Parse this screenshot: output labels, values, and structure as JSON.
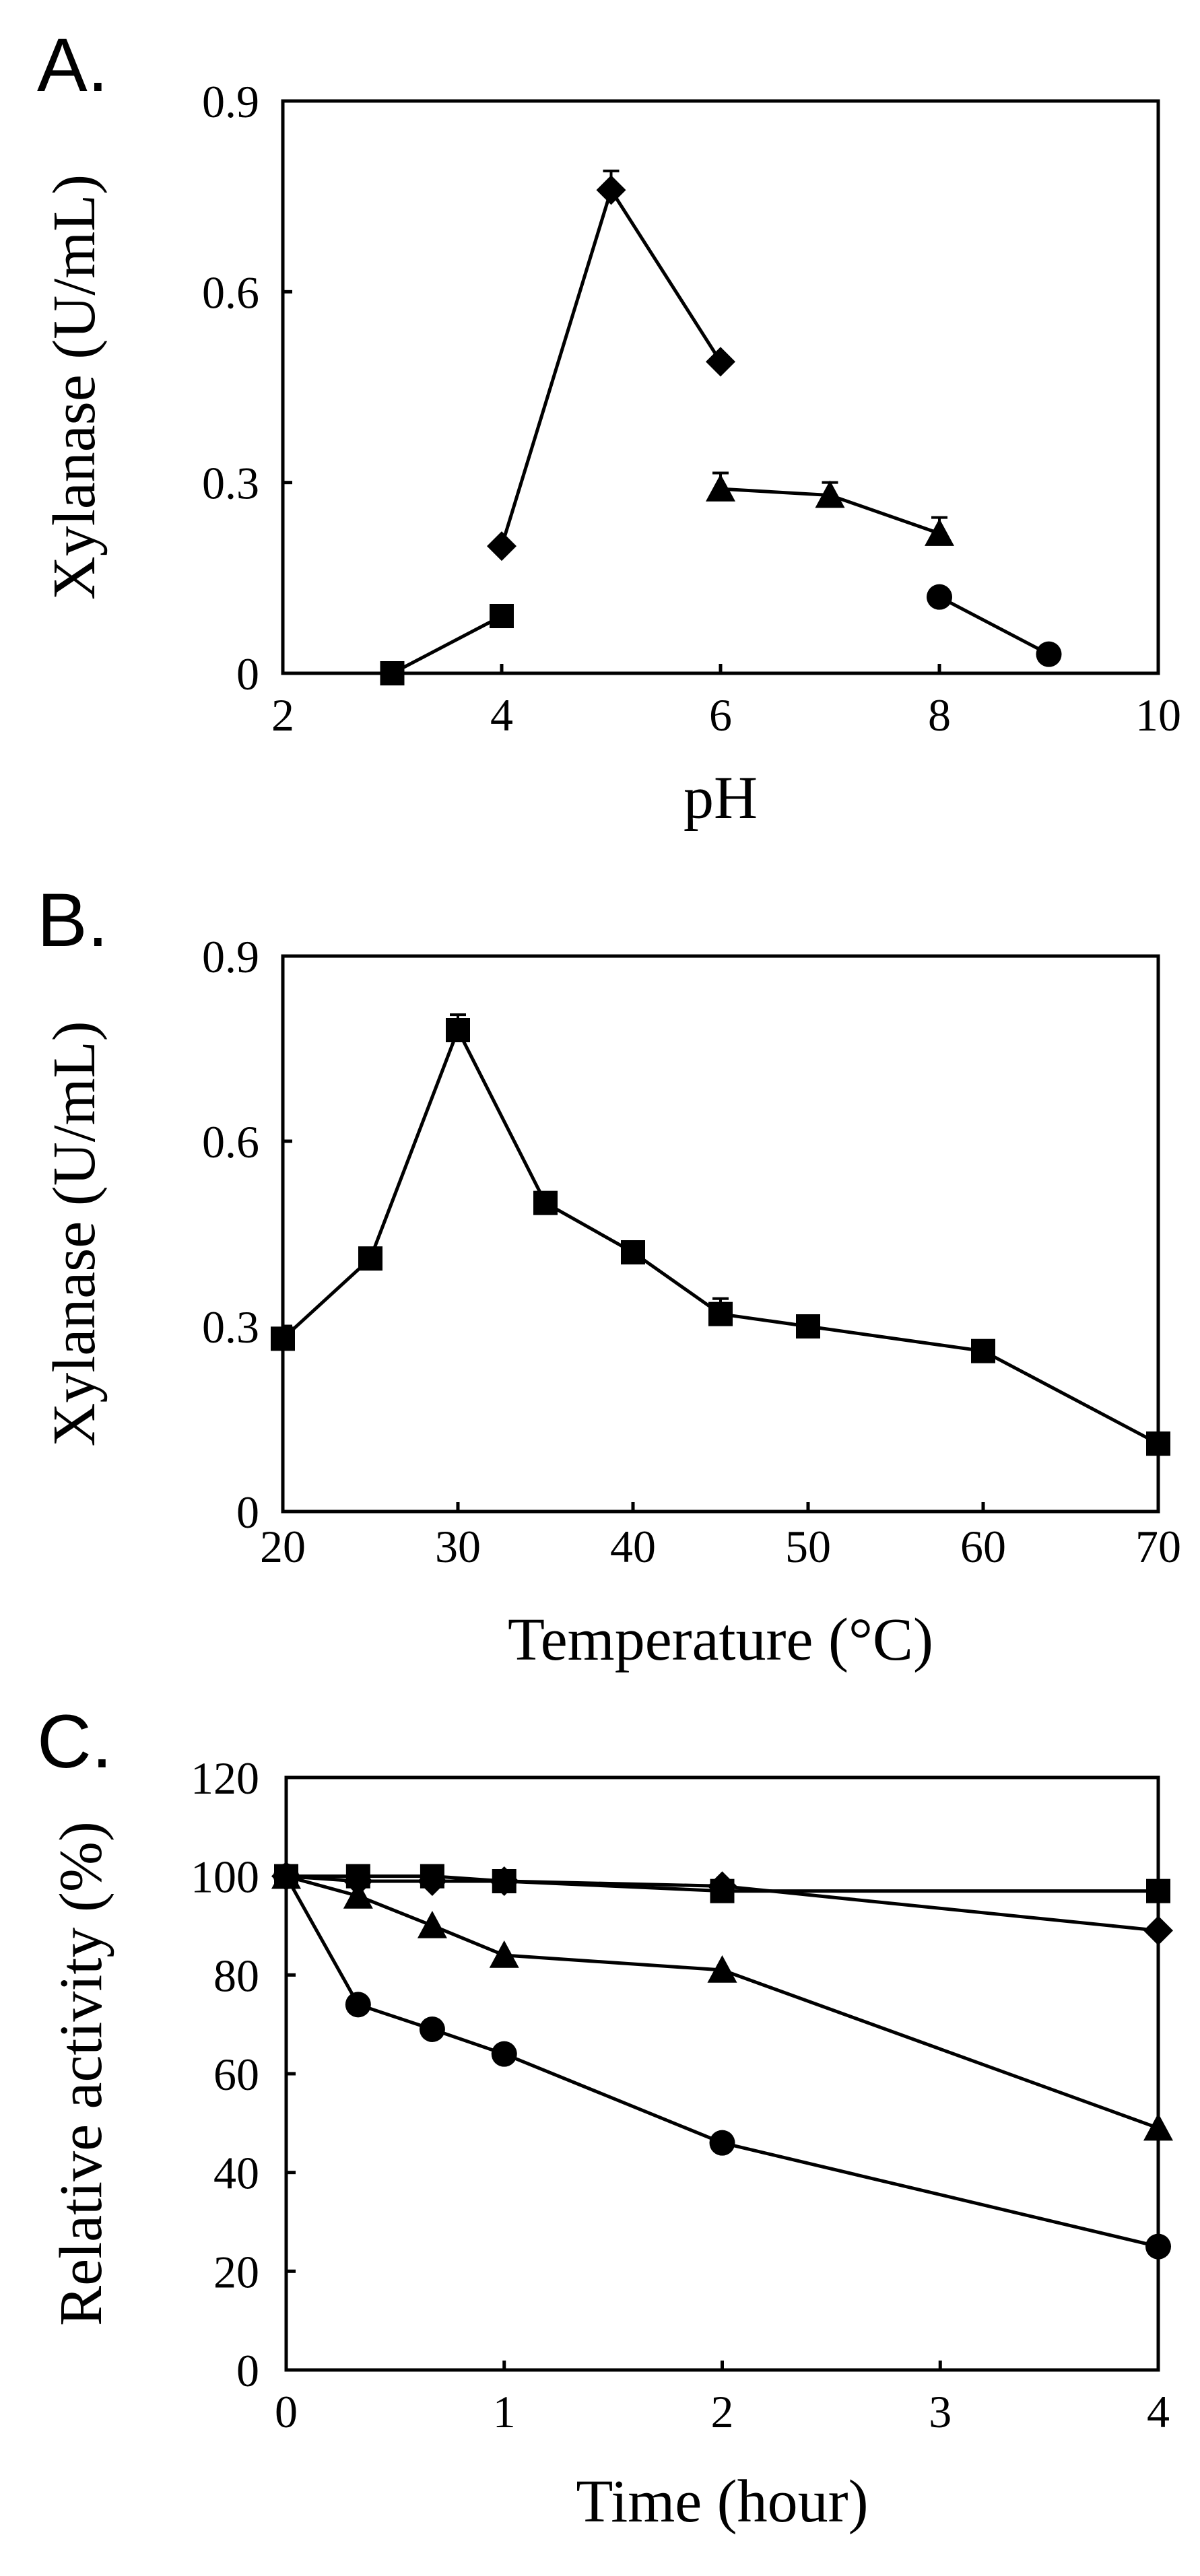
{
  "chart_data": [
    {
      "panel": "A.",
      "type": "line",
      "xlabel": "pH",
      "ylabel": "Xylanase (U/mL)",
      "xlim": [
        2,
        10
      ],
      "ylim": [
        0,
        0.9
      ],
      "xticks": [
        "2",
        "4",
        "6",
        "8",
        "10"
      ],
      "yticks": [
        "0",
        "0.3",
        "0.6",
        "0.9"
      ],
      "series": [
        {
          "marker": "square",
          "x": [
            3,
            4
          ],
          "y": [
            0.0,
            0.09
          ],
          "err": [
            0,
            0
          ]
        },
        {
          "marker": "diamond",
          "x": [
            4,
            5,
            6
          ],
          "y": [
            0.2,
            0.76,
            0.49
          ],
          "err": [
            0,
            0.03,
            0
          ]
        },
        {
          "marker": "triangle",
          "x": [
            6,
            7,
            8
          ],
          "y": [
            0.29,
            0.28,
            0.22
          ],
          "err": [
            0.025,
            0.02,
            0.025
          ]
        },
        {
          "marker": "circle",
          "x": [
            8,
            9
          ],
          "y": [
            0.12,
            0.03
          ],
          "err": [
            0,
            0
          ]
        }
      ]
    },
    {
      "panel": "B.",
      "type": "line",
      "xlabel": "Temperature (°C)",
      "ylabel": "Xylanase (U/mL)",
      "xlim": [
        20,
        70
      ],
      "ylim": [
        0,
        0.9
      ],
      "xticks": [
        "20",
        "30",
        "40",
        "50",
        "60",
        "70"
      ],
      "yticks": [
        "0",
        "0.3",
        "0.6",
        "0.9"
      ],
      "series": [
        {
          "marker": "square",
          "x": [
            20,
            25,
            30,
            35,
            40,
            45,
            50,
            60,
            70
          ],
          "y": [
            0.28,
            0.41,
            0.78,
            0.5,
            0.42,
            0.32,
            0.3,
            0.26,
            0.11
          ],
          "err": [
            0,
            0,
            0.025,
            0,
            0,
            0.025,
            0,
            0,
            0
          ]
        }
      ]
    },
    {
      "panel": "C.",
      "type": "line",
      "xlabel": "Time (hour)",
      "ylabel": "Relative activity (%)",
      "xlim": [
        0,
        4
      ],
      "ylim": [
        0,
        120
      ],
      "xticks": [
        "0",
        "1",
        "2",
        "3",
        "4"
      ],
      "yticks": [
        "0",
        "20",
        "40",
        "60",
        "80",
        "100",
        "120"
      ],
      "series": [
        {
          "marker": "square",
          "x": [
            0,
            0.33,
            0.67,
            1,
            2,
            4
          ],
          "y": [
            100,
            100,
            100,
            99,
            97,
            97
          ],
          "err": [
            0,
            0,
            0,
            0,
            0,
            0
          ]
        },
        {
          "marker": "diamond",
          "x": [
            0,
            0.33,
            0.67,
            1,
            2,
            4
          ],
          "y": [
            100,
            99,
            99,
            99,
            98,
            89
          ],
          "err": [
            0,
            0,
            0,
            0,
            0,
            0
          ]
        },
        {
          "marker": "triangle",
          "x": [
            0,
            0.33,
            0.67,
            1,
            2,
            4
          ],
          "y": [
            100,
            96,
            90,
            84,
            81,
            49
          ],
          "err": [
            0,
            0,
            0,
            0,
            0,
            0
          ]
        },
        {
          "marker": "circle",
          "x": [
            0,
            0.33,
            0.67,
            1,
            2,
            4
          ],
          "y": [
            100,
            74,
            69,
            64,
            46,
            25
          ],
          "err": [
            0,
            0,
            0,
            0,
            0,
            0
          ]
        }
      ]
    }
  ]
}
